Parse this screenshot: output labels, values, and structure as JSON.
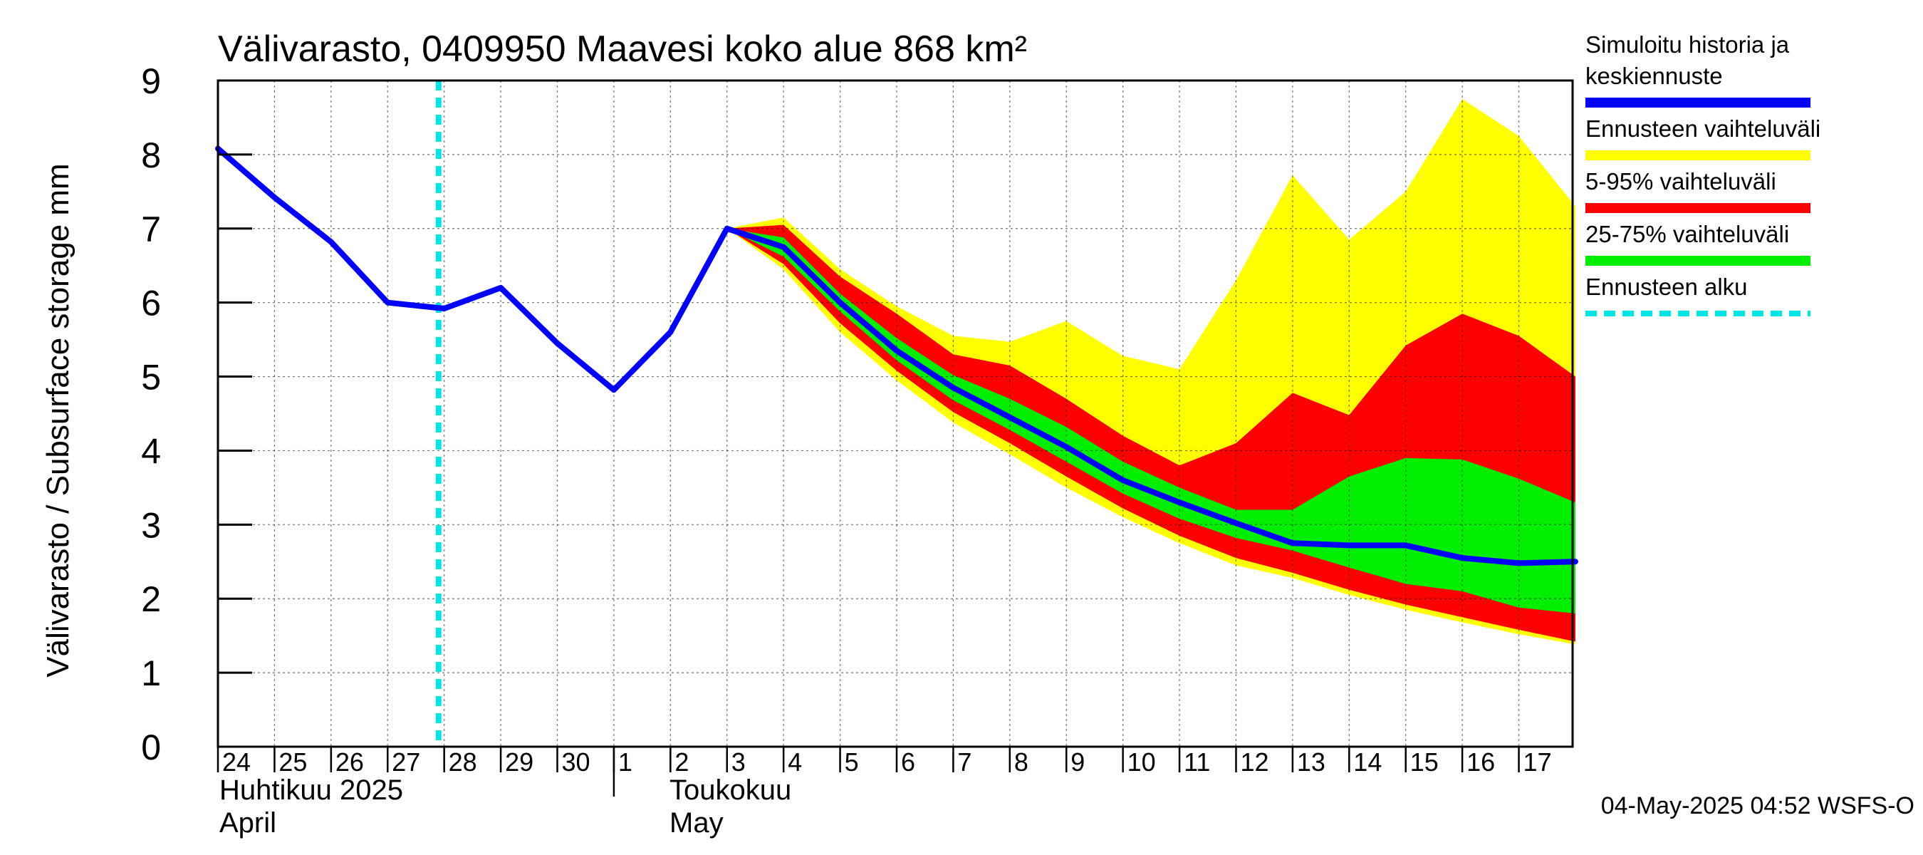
{
  "chart_data": {
    "type": "area",
    "title": "Välivarasto, 0409950 Maavesi koko alue 868 km²",
    "ylabel": "Välivarasto / Subsurface storage  mm",
    "xlabel": "",
    "ylim": [
      0,
      9
    ],
    "y_ticks": [
      "0",
      "1",
      "2",
      "3",
      "4",
      "5",
      "6",
      "7",
      "8",
      "9"
    ],
    "x_tick_labels": [
      "24",
      "25",
      "26",
      "27",
      "28",
      "29",
      "30",
      "1",
      "2",
      "3",
      "4",
      "5",
      "6",
      "7",
      "8",
      "9",
      "10",
      "11",
      "12",
      "13",
      "14",
      "15",
      "16",
      "17"
    ],
    "month_labels": {
      "april_fi": "Huhtikuu  2025",
      "april_en": "April",
      "may_fi": "Toukokuu",
      "may_en": "May"
    },
    "grid": true,
    "legend_position": "right",
    "forecast_start_day": 3.9,
    "series": [
      {
        "name": "Simuloitu historia ja keskiennuste",
        "color": "#0000ff",
        "x": [
          0,
          1,
          2,
          3,
          4,
          5,
          6,
          7,
          8,
          9,
          10,
          11,
          12,
          13,
          14,
          15,
          16,
          17,
          18,
          19,
          20,
          21,
          22,
          23,
          24
        ],
        "values": [
          8.08,
          7.42,
          6.82,
          6.0,
          5.92,
          6.2,
          5.45,
          4.82,
          5.6,
          7.0,
          6.75,
          6.0,
          5.35,
          4.85,
          4.45,
          4.05,
          3.6,
          3.3,
          3.02,
          2.75,
          2.72,
          2.72,
          2.55,
          2.48,
          2.5
        ]
      }
    ],
    "bands": [
      {
        "name": "Ennusteen vaihteluväli",
        "color": "#ffff00",
        "x": [
          9,
          10,
          11,
          12,
          13,
          14,
          15,
          16,
          17,
          18,
          19,
          20,
          21,
          22,
          23,
          24
        ],
        "upper": [
          7.0,
          7.15,
          6.45,
          5.95,
          5.55,
          5.47,
          5.75,
          5.28,
          5.1,
          6.3,
          7.72,
          6.85,
          7.5,
          8.75,
          8.25,
          7.3
        ],
        "lower": [
          7.0,
          6.45,
          5.6,
          4.95,
          4.38,
          3.95,
          3.5,
          3.1,
          2.75,
          2.45,
          2.28,
          2.05,
          1.85,
          1.68,
          1.52,
          1.38
        ]
      },
      {
        "name": "5-95% vaihteluväli",
        "color": "#ff0000",
        "x": [
          9,
          10,
          11,
          12,
          13,
          14,
          15,
          16,
          17,
          18,
          19,
          20,
          21,
          22,
          23,
          24
        ],
        "upper": [
          7.0,
          7.05,
          6.35,
          5.85,
          5.3,
          5.15,
          4.7,
          4.2,
          3.8,
          4.1,
          4.78,
          4.48,
          5.42,
          5.85,
          5.55,
          5.0
        ],
        "lower": [
          7.0,
          6.52,
          5.72,
          5.08,
          4.52,
          4.1,
          3.65,
          3.22,
          2.85,
          2.55,
          2.35,
          2.12,
          1.92,
          1.75,
          1.58,
          1.42
        ]
      },
      {
        "name": "25-75% vaihteluväli",
        "color": "#00ee00",
        "x": [
          9,
          10,
          11,
          12,
          13,
          14,
          15,
          16,
          17,
          18,
          19,
          20,
          21,
          22,
          23,
          24
        ],
        "upper": [
          7.0,
          6.88,
          6.12,
          5.52,
          5.02,
          4.7,
          4.32,
          3.85,
          3.5,
          3.2,
          3.2,
          3.65,
          3.9,
          3.88,
          3.62,
          3.3
        ],
        "lower": [
          7.0,
          6.62,
          5.88,
          5.22,
          4.68,
          4.28,
          3.85,
          3.42,
          3.08,
          2.82,
          2.65,
          2.42,
          2.2,
          2.1,
          1.88,
          1.8
        ]
      }
    ]
  },
  "legend": {
    "items": [
      {
        "line1": "Simuloitu historia ja",
        "line2": "keskiennuste",
        "color": "#0000ff",
        "style": "solid"
      },
      {
        "line1": "Ennusteen vaihteluväli",
        "line2": "",
        "color": "#ffff00",
        "style": "solid"
      },
      {
        "line1": "5-95% vaihteluväli",
        "line2": "",
        "color": "#ff0000",
        "style": "solid"
      },
      {
        "line1": "25-75% vaihteluväli",
        "line2": "",
        "color": "#00ee00",
        "style": "solid"
      },
      {
        "line1": "Ennusteen alku",
        "line2": "",
        "color": "#00e5e5",
        "style": "dashed"
      }
    ]
  },
  "footer": {
    "timestamp": "04-May-2025 04:52 WSFS-O"
  }
}
